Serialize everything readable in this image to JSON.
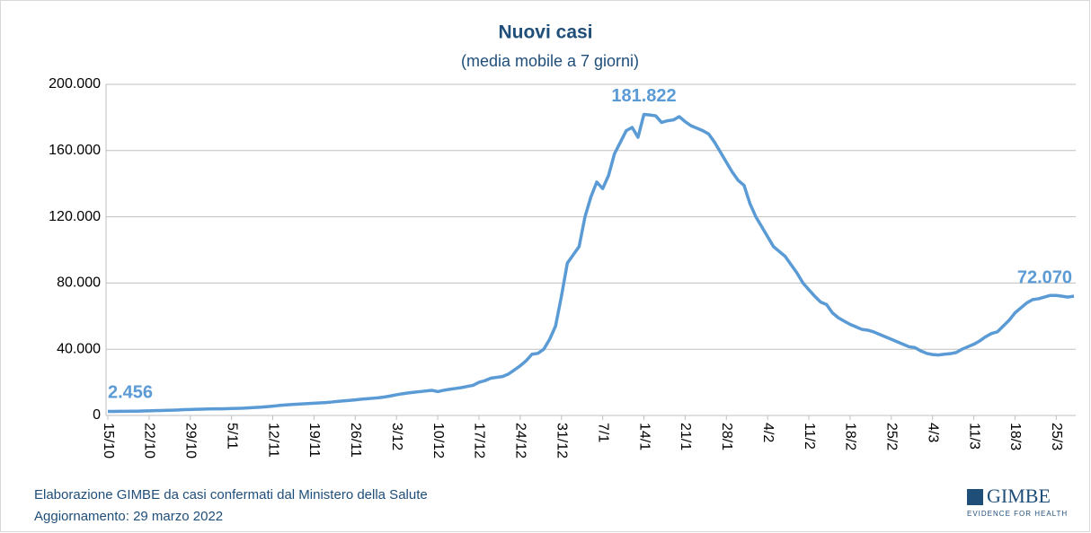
{
  "chart_data": {
    "type": "line",
    "title": "Nuovi casi",
    "subtitle": "(media mobile a 7 giorni)",
    "footer": [
      "Elaborazione GIMBE da casi confermati dal Ministero della Salute",
      "Aggiornamento: 29 marzo 2022"
    ],
    "logo": {
      "name": "GIMBE",
      "tagline": "EVIDENCE FOR HEALTH"
    },
    "categories": [
      "15/10",
      null,
      null,
      null,
      null,
      null,
      null,
      "22/10",
      null,
      null,
      null,
      null,
      null,
      null,
      "29/10",
      null,
      null,
      null,
      null,
      null,
      null,
      "5/11",
      null,
      null,
      null,
      null,
      null,
      null,
      "12/11",
      null,
      null,
      null,
      null,
      null,
      null,
      "19/11",
      null,
      null,
      null,
      null,
      null,
      null,
      "26/11",
      null,
      null,
      null,
      null,
      null,
      null,
      "3/12",
      null,
      null,
      null,
      null,
      null,
      null,
      "10/12",
      null,
      null,
      null,
      null,
      null,
      null,
      "17/12",
      null,
      null,
      null,
      null,
      null,
      null,
      "24/12",
      null,
      null,
      null,
      null,
      null,
      null,
      "31/12",
      null,
      null,
      null,
      null,
      null,
      null,
      "7/1",
      null,
      null,
      null,
      null,
      null,
      null,
      "14/1",
      null,
      null,
      null,
      null,
      null,
      null,
      "21/1",
      null,
      null,
      null,
      null,
      null,
      null,
      "28/1",
      null,
      null,
      null,
      null,
      null,
      null,
      "4/2",
      null,
      null,
      null,
      null,
      null,
      null,
      "11/2",
      null,
      null,
      null,
      null,
      null,
      null,
      "18/2",
      null,
      null,
      null,
      null,
      null,
      null,
      "25/2",
      null,
      null,
      null,
      null,
      null,
      null,
      "4/3",
      null,
      null,
      null,
      null,
      null,
      null,
      "11/3",
      null,
      null,
      null,
      null,
      null,
      null,
      "18/3",
      null,
      null,
      null,
      null,
      null,
      null,
      "25/3",
      null,
      null,
      null
    ],
    "series": [
      {
        "name": "Nuovi casi",
        "color": "#5b9bd5",
        "values": [
          2456,
          2450,
          2500,
          2500,
          2550,
          2600,
          2700,
          2800,
          2900,
          3000,
          3100,
          3200,
          3300,
          3500,
          3600,
          3700,
          3800,
          3900,
          4000,
          4000,
          4100,
          4200,
          4300,
          4400,
          4600,
          4800,
          5000,
          5300,
          5600,
          6000,
          6300,
          6600,
          6800,
          7000,
          7200,
          7400,
          7600,
          7800,
          8100,
          8500,
          8800,
          9100,
          9400,
          9800,
          10100,
          10400,
          10700,
          11200,
          11800,
          12500,
          13100,
          13600,
          14000,
          14400,
          14800,
          15200,
          14400,
          15200,
          15800,
          16300,
          16800,
          17500,
          18200,
          20000,
          21000,
          22500,
          23000,
          23500,
          25000,
          27500,
          30000,
          33000,
          37000,
          37500,
          40000,
          46000,
          54000,
          72000,
          92000,
          97000,
          102000,
          120000,
          132000,
          141000,
          137000,
          145000,
          158000,
          165000,
          172000,
          174000,
          168000,
          181822,
          181500,
          181000,
          177000,
          178000,
          178500,
          180500,
          177500,
          175000,
          173500,
          172000,
          170000,
          165000,
          159000,
          153000,
          147000,
          142000,
          139000,
          128000,
          120000,
          114000,
          108000,
          102000,
          99000,
          96000,
          91000,
          86000,
          80000,
          76000,
          72000,
          68500,
          67000,
          62000,
          59000,
          57000,
          55000,
          53500,
          52000,
          51500,
          50500,
          49000,
          47500,
          46000,
          44500,
          43000,
          41500,
          41000,
          39000,
          37500,
          36800,
          36500,
          37000,
          37300,
          38000,
          40000,
          41500,
          43000,
          45000,
          47500,
          49500,
          50500,
          54000,
          57500,
          62000,
          65000,
          68000,
          70000,
          70500,
          71500,
          72500,
          72500,
          72000,
          71500,
          72070
        ],
        "value_labels": [
          "2.456",
          null,
          null,
          null,
          null,
          null,
          null,
          null,
          null,
          null,
          null,
          null,
          null,
          null,
          null,
          null,
          null,
          null,
          null,
          null,
          null,
          null,
          null,
          null,
          null,
          null,
          null,
          null,
          null,
          null,
          null,
          null,
          null,
          null,
          null,
          null,
          null,
          null,
          null,
          null,
          null,
          null,
          null,
          null,
          null,
          null,
          null,
          null,
          null,
          null,
          null,
          null,
          null,
          null,
          null,
          null,
          null,
          null,
          null,
          null,
          null,
          null,
          null,
          null,
          null,
          null,
          null,
          null,
          null,
          null,
          null,
          null,
          null,
          null,
          null,
          null,
          null,
          null,
          null,
          null,
          null,
          null,
          null,
          null,
          null,
          null,
          null,
          null,
          null,
          null,
          null,
          "181.822",
          null,
          null,
          null,
          null,
          null,
          null,
          null,
          null,
          null,
          null,
          null,
          null,
          null,
          null,
          null,
          null,
          null,
          null,
          null,
          null,
          null,
          null,
          null,
          null,
          null,
          null,
          null,
          null,
          null,
          null,
          null,
          null,
          null,
          null,
          null,
          null,
          null,
          null,
          null,
          null,
          null,
          null,
          null,
          null,
          null,
          null,
          null,
          null,
          null,
          null,
          null,
          null,
          null,
          null,
          null,
          null,
          null,
          null,
          null,
          null,
          null,
          null,
          null,
          null,
          null,
          null,
          null,
          null,
          null,
          null,
          null,
          null,
          "72.070"
        ]
      }
    ],
    "ylim": [
      0,
      200000
    ],
    "yticks": [
      {
        "value": 0,
        "label": "0"
      },
      {
        "value": 40000,
        "label": "40.000"
      },
      {
        "value": 80000,
        "label": "80.000"
      },
      {
        "value": 120000,
        "label": "120.000"
      },
      {
        "value": 160000,
        "label": "160.000"
      },
      {
        "value": 200000,
        "label": "200.000"
      }
    ],
    "grid": true
  }
}
